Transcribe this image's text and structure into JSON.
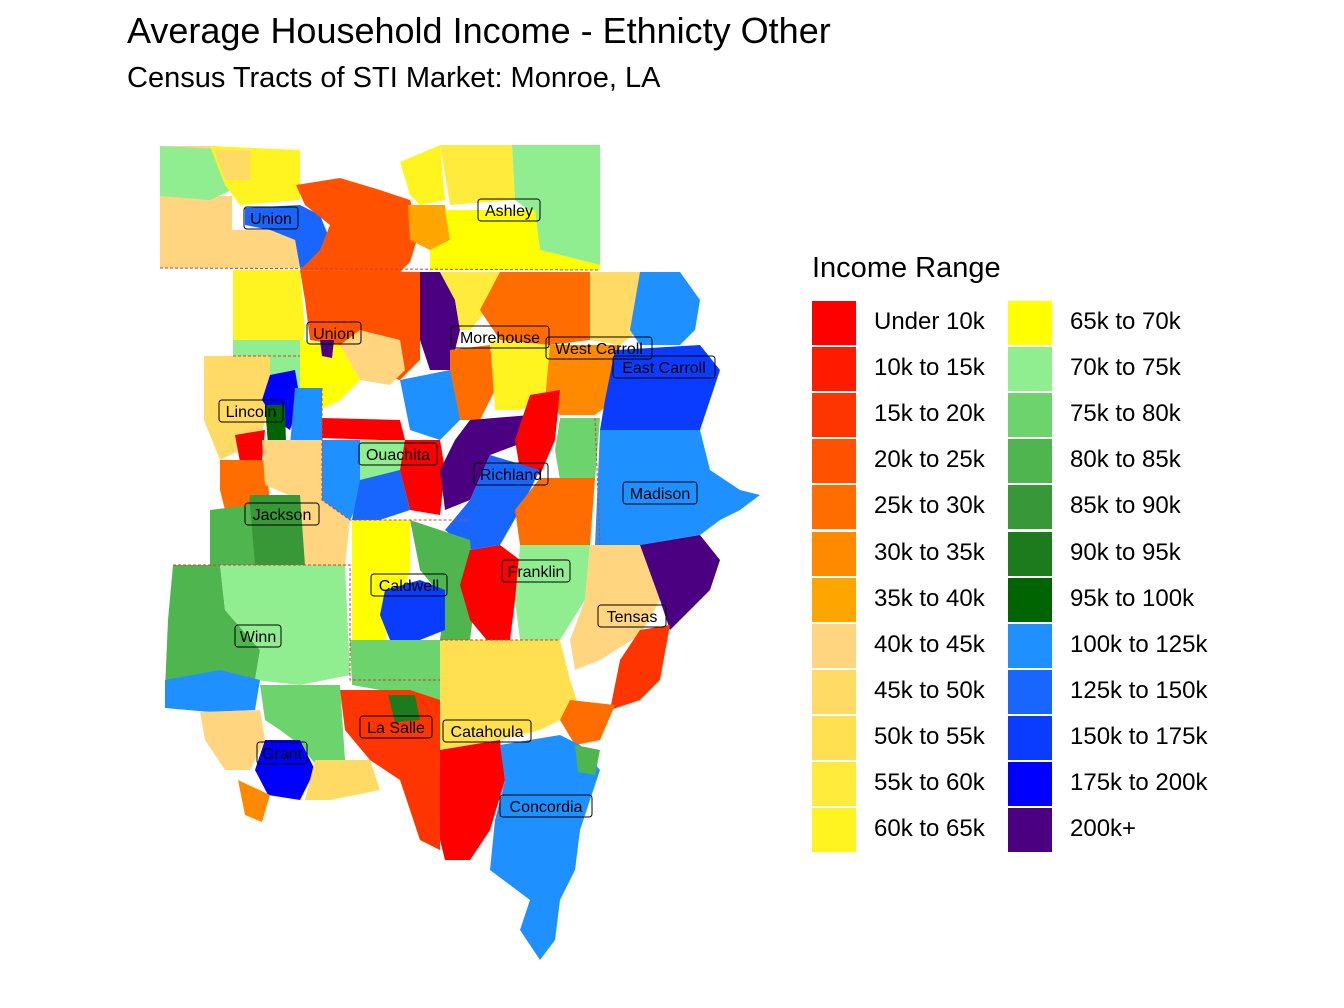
{
  "title": "Average Household Income - Ethnicty Other",
  "subtitle": "Census Tracts of STI Market: Monroe, LA",
  "legend": {
    "title": "Income Range",
    "items": [
      {
        "label": "Under 10k",
        "color": "#FF0000"
      },
      {
        "label": "10k to 15k",
        "color": "#FF1A00"
      },
      {
        "label": "15k to 20k",
        "color": "#FF3500"
      },
      {
        "label": "20k to 25k",
        "color": "#FF5100"
      },
      {
        "label": "25k to 30k",
        "color": "#FF6D00"
      },
      {
        "label": "30k to 35k",
        "color": "#FF8A00"
      },
      {
        "label": "35k to 40k",
        "color": "#FFA500"
      },
      {
        "label": "40k to 45k",
        "color": "#FFD580"
      },
      {
        "label": "45k to 50k",
        "color": "#FFDA65"
      },
      {
        "label": "50k to 55k",
        "color": "#FFE050"
      },
      {
        "label": "55k to 60k",
        "color": "#FFEB3B"
      },
      {
        "label": "60k to 65k",
        "color": "#FFF41F"
      },
      {
        "label": "65k to 70k",
        "color": "#FFFF00"
      },
      {
        "label": "70k to 75k",
        "color": "#90EE90"
      },
      {
        "label": "75k to 80k",
        "color": "#6DD36D"
      },
      {
        "label": "80k to 85k",
        "color": "#4FB54F"
      },
      {
        "label": "85k to 90k",
        "color": "#389838"
      },
      {
        "label": "90k to 95k",
        "color": "#1D7A1D"
      },
      {
        "label": "95k to 100k",
        "color": "#006400"
      },
      {
        "label": "100k to 125k",
        "color": "#1E90FF"
      },
      {
        "label": "125k to 150k",
        "color": "#1966FF"
      },
      {
        "label": "150k to 175k",
        "color": "#0A3CFF"
      },
      {
        "label": "175k to 200k",
        "color": "#0000FF"
      },
      {
        "label": "200k+",
        "color": "#4B0082"
      }
    ]
  },
  "counties": [
    {
      "name": "Union"
    },
    {
      "name": "Ashley"
    },
    {
      "name": "Union"
    },
    {
      "name": "Morehouse"
    },
    {
      "name": "West Carroll"
    },
    {
      "name": "East Carroll"
    },
    {
      "name": "Lincoln"
    },
    {
      "name": "Ouachita"
    },
    {
      "name": "Richland"
    },
    {
      "name": "Madison"
    },
    {
      "name": "Jackson"
    },
    {
      "name": "Franklin"
    },
    {
      "name": "Caldwell"
    },
    {
      "name": "Tensas"
    },
    {
      "name": "Winn"
    },
    {
      "name": "La Salle"
    },
    {
      "name": "Catahoula"
    },
    {
      "name": "Grant"
    },
    {
      "name": "Concordia"
    }
  ]
}
